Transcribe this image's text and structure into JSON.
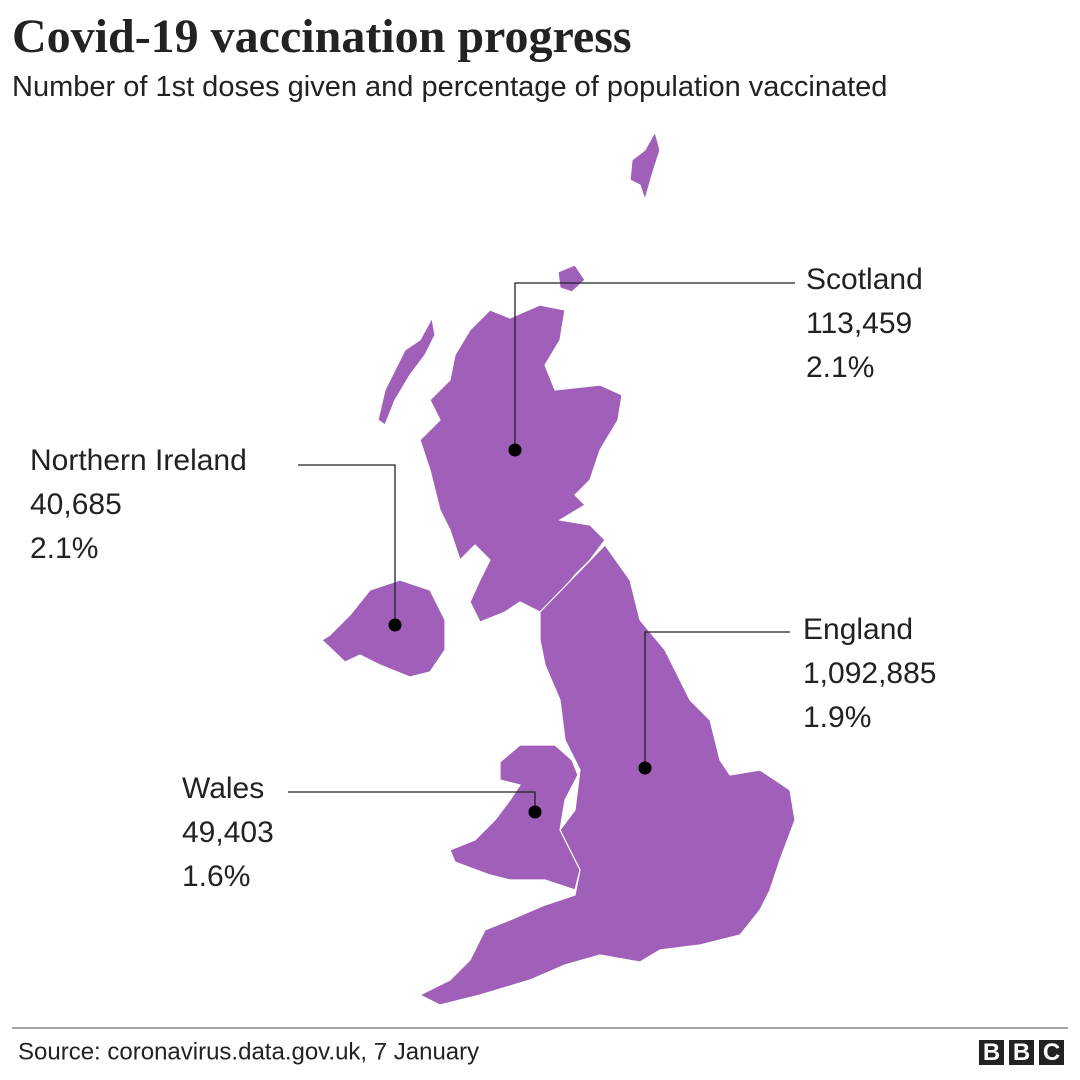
{
  "header": {
    "title": "Covid-19 vaccination progress",
    "subtitle": "Number of 1st doses given and percentage of population vaccinated"
  },
  "regions": [
    {
      "name": "Scotland",
      "doses": "113,459",
      "percent": "2.1%"
    },
    {
      "name": "Northern Ireland",
      "doses": "40,685",
      "percent": "2.1%"
    },
    {
      "name": "England",
      "doses": "1,092,885",
      "percent": "1.9%"
    },
    {
      "name": "Wales",
      "doses": "49,403",
      "percent": "1.6%"
    }
  ],
  "footer": {
    "source": "Source: coronavirus.data.gov.uk, 7 January",
    "logo": [
      "B",
      "B",
      "C"
    ]
  }
}
